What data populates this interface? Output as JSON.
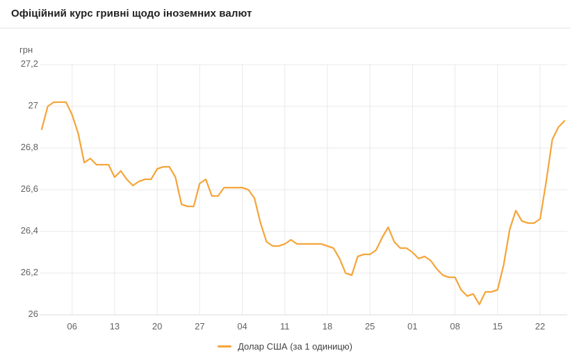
{
  "colors": {
    "line": "#F5A53B",
    "grid": "#E9E9E9",
    "baseline": "#DBDBDB",
    "axis_text": "#616161",
    "title_text": "#212121",
    "legend_text": "#424242"
  },
  "chart_data": {
    "type": "line",
    "title": "Офіційний курс гривні щодо іноземних валют",
    "ylabel": "грн",
    "xlabel": "",
    "grid": true,
    "legend_position": "bottom",
    "ylim": [
      26.0,
      27.2
    ],
    "y_ticks": [
      {
        "value": 27.2,
        "label": "27,2"
      },
      {
        "value": 27.0,
        "label": "27"
      },
      {
        "value": 26.8,
        "label": "26,8"
      },
      {
        "value": 26.6,
        "label": "26,6"
      },
      {
        "value": 26.4,
        "label": "26,4"
      },
      {
        "value": 26.2,
        "label": "26,2"
      },
      {
        "value": 26.0,
        "label": "26"
      }
    ],
    "x_ticks": [
      {
        "day": 6,
        "label": "06"
      },
      {
        "day": 13,
        "label": "13"
      },
      {
        "day": 20,
        "label": "20"
      },
      {
        "day": 27,
        "label": "27"
      },
      {
        "day": 34,
        "label": "04"
      },
      {
        "day": 41,
        "label": "11"
      },
      {
        "day": 48,
        "label": "18"
      },
      {
        "day": 55,
        "label": "25"
      },
      {
        "day": 62,
        "label": "01"
      },
      {
        "day": 69,
        "label": "08"
      },
      {
        "day": 76,
        "label": "15"
      },
      {
        "day": 83,
        "label": "22"
      }
    ],
    "series": [
      {
        "name": "Долар США (за 1 одиницю)",
        "color": "#F5A53B",
        "values": [
          26.89,
          27.0,
          27.02,
          27.02,
          27.02,
          26.96,
          26.87,
          26.73,
          26.75,
          26.72,
          26.72,
          26.72,
          26.66,
          26.69,
          26.65,
          26.62,
          26.64,
          26.65,
          26.65,
          26.7,
          26.71,
          26.71,
          26.66,
          26.53,
          26.52,
          26.52,
          26.63,
          26.65,
          26.57,
          26.57,
          26.61,
          26.61,
          26.61,
          26.61,
          26.6,
          26.56,
          26.44,
          26.35,
          26.33,
          26.33,
          26.34,
          26.36,
          26.34,
          26.34,
          26.34,
          26.34,
          26.34,
          26.33,
          26.32,
          26.27,
          26.2,
          26.19,
          26.28,
          26.29,
          26.29,
          26.31,
          26.37,
          26.42,
          26.35,
          26.32,
          26.32,
          26.3,
          26.27,
          26.28,
          26.26,
          26.22,
          26.19,
          26.18,
          26.18,
          26.12,
          26.09,
          26.1,
          26.05,
          26.11,
          26.11,
          26.12,
          26.24,
          26.41,
          26.5,
          26.45,
          26.44,
          26.44,
          26.46,
          26.64,
          26.84,
          26.9,
          26.93
        ]
      }
    ]
  }
}
